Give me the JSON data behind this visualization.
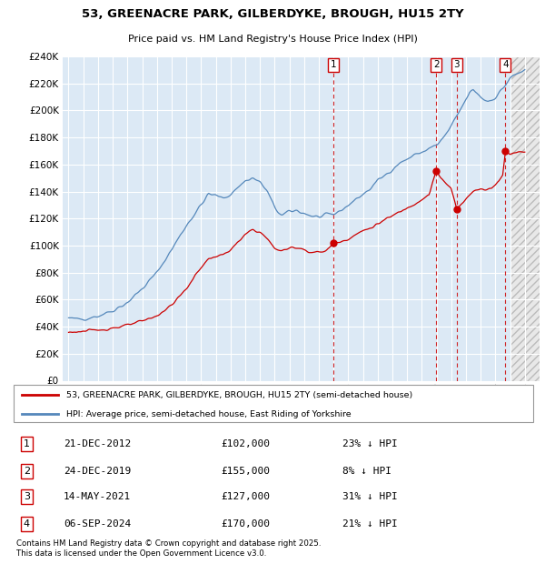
{
  "title": "53, GREENACRE PARK, GILBERDYKE, BROUGH, HU15 2TY",
  "subtitle": "Price paid vs. HM Land Registry's House Price Index (HPI)",
  "background_color": "#ffffff",
  "plot_bg_color": "#dce9f5",
  "grid_color": "#ffffff",
  "hpi_line_color": "#5588bb",
  "price_line_color": "#cc0000",
  "dashed_line_color": "#cc0000",
  "ylim": [
    0,
    240000
  ],
  "yticks": [
    0,
    20000,
    40000,
    60000,
    80000,
    100000,
    120000,
    140000,
    160000,
    180000,
    200000,
    220000,
    240000
  ],
  "transactions": [
    {
      "id": 1,
      "date": "21-DEC-2012",
      "date_num": 2012.97,
      "price": 102000,
      "pct": "23%",
      "direction": "↓"
    },
    {
      "id": 2,
      "date": "24-DEC-2019",
      "date_num": 2019.98,
      "price": 155000,
      "pct": "8%",
      "direction": "↓"
    },
    {
      "id": 3,
      "date": "14-MAY-2021",
      "date_num": 2021.37,
      "price": 127000,
      "pct": "31%",
      "direction": "↓"
    },
    {
      "id": 4,
      "date": "06-SEP-2024",
      "date_num": 2024.68,
      "price": 170000,
      "pct": "21%",
      "direction": "↓"
    }
  ],
  "legend_line1": "53, GREENACRE PARK, GILBERDYKE, BROUGH, HU15 2TY (semi-detached house)",
  "legend_line2": "HPI: Average price, semi-detached house, East Riding of Yorkshire",
  "footer": "Contains HM Land Registry data © Crown copyright and database right 2025.\nThis data is licensed under the Open Government Licence v3.0."
}
